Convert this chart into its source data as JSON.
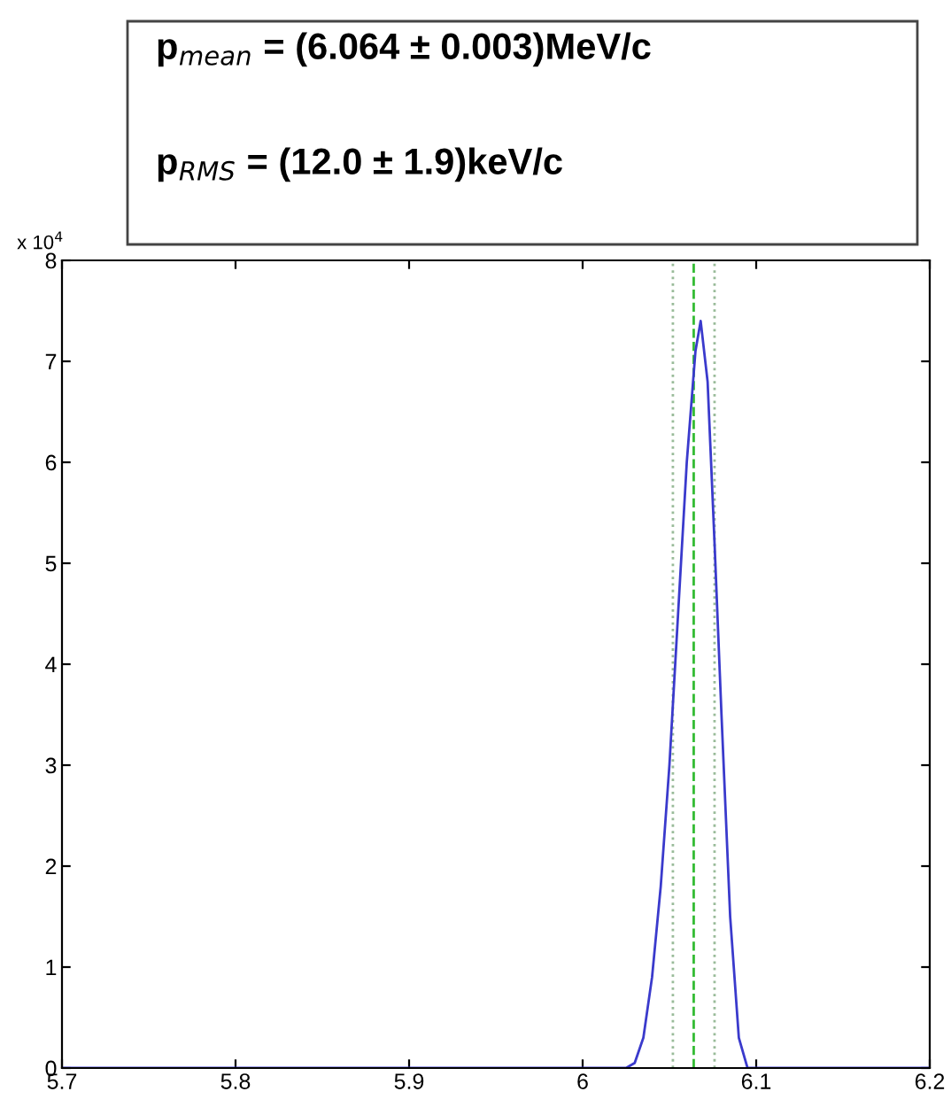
{
  "chart_data": {
    "type": "line",
    "x": [
      5.7,
      5.8,
      5.9,
      6.0,
      6.025,
      6.03,
      6.035,
      6.04,
      6.045,
      6.05,
      6.055,
      6.06,
      6.065,
      6.068,
      6.072,
      6.076,
      6.08,
      6.085,
      6.09,
      6.095,
      6.1,
      6.15,
      6.2
    ],
    "series": [
      {
        "color": "#3a3acc",
        "values": [
          0,
          0,
          0,
          0,
          0,
          0.05,
          0.3,
          0.9,
          1.8,
          3.0,
          4.5,
          6.0,
          7.1,
          7.4,
          6.8,
          5.2,
          3.5,
          1.5,
          0.3,
          0,
          0,
          0,
          0
        ]
      }
    ],
    "xlim": [
      5.7,
      6.2
    ],
    "xticks": [
      5.7,
      5.8,
      5.9,
      6,
      6.1,
      6.2
    ],
    "ylim": [
      0,
      8
    ],
    "yticks": [
      0,
      1,
      2,
      3,
      4,
      5,
      6,
      7,
      8
    ],
    "ref_lines": [
      {
        "axis": "x",
        "value": 6.064,
        "color": "#33bb33",
        "line_style": "dashed"
      },
      {
        "axis": "x",
        "value": 6.052,
        "color": "#99bb99",
        "line_style": "dotted"
      },
      {
        "axis": "x",
        "value": 6.076,
        "color": "#99bb99",
        "line_style": "dotted"
      }
    ],
    "annotations": [
      "x 10$^{4}$",
      "p$_{mean}$ = (6.064 ± 0.003)MeV/c",
      "p$_{RMS}$ = (12.0 ± 1.9)keV/c"
    ],
    "grid": false,
    "line_style": "solid",
    "marker": "none"
  }
}
